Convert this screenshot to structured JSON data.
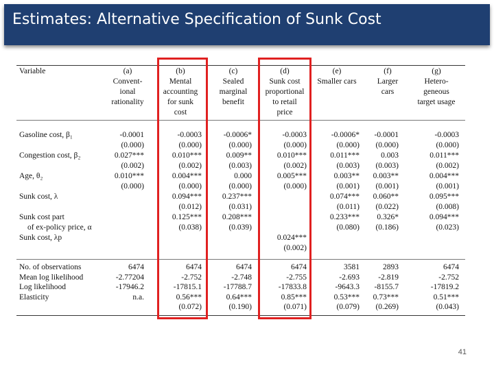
{
  "slide": {
    "title": "Estimates: Alternative Specification of Sunk Cost",
    "page_number": "41",
    "accent_color": "#1f3f71",
    "highlight_color": "#e02020"
  },
  "table": {
    "variable_header": "Variable",
    "columns": [
      {
        "tag": "(a)",
        "name": [
          "Convent-",
          "ional",
          "rationality"
        ]
      },
      {
        "tag": "(b)",
        "name": [
          "Mental",
          "accounting",
          "for sunk",
          "cost"
        ]
      },
      {
        "tag": "(c)",
        "name": [
          "Sealed",
          "marginal",
          "benefit"
        ]
      },
      {
        "tag": "(d)",
        "name": [
          "Sunk cost",
          "proportional",
          "to retail",
          "price"
        ]
      },
      {
        "tag": "(e)",
        "name": [
          "Smaller cars"
        ]
      },
      {
        "tag": "(f)",
        "name": [
          "Larger",
          "cars"
        ]
      },
      {
        "tag": "(g)",
        "name": [
          "Hetero-",
          "geneous",
          "target usage"
        ]
      }
    ],
    "highlighted_columns": [
      "(b)",
      "(d)"
    ],
    "coef_rows": [
      {
        "label": "Gasoline cost, β₁",
        "values": [
          "-0.0001",
          "-0.0003",
          "-0.0006*",
          "-0.0003",
          "-0.0006*",
          "-0.0001",
          "-0.0003"
        ]
      },
      {
        "label": "",
        "values": [
          "(0.000)",
          "(0.000)",
          "(0.000)",
          "(0.000)",
          "(0.000)",
          "(0.000)",
          "(0.000)"
        ]
      },
      {
        "label": "Congestion cost, β₂",
        "values": [
          "0.027***",
          "0.010***",
          "0.009**",
          "0.010***",
          "0.011***",
          "0.003",
          "0.011***"
        ]
      },
      {
        "label": "",
        "values": [
          "(0.002)",
          "(0.002)",
          "(0.003)",
          "(0.002)",
          "(0.003)",
          "(0.003)",
          "(0.002)"
        ]
      },
      {
        "label": "Age, θ₂",
        "values": [
          "0.010***",
          "0.004***",
          "0.000",
          "0.005***",
          "0.003**",
          "0.003**",
          "0.004***"
        ]
      },
      {
        "label": "",
        "values": [
          "(0.000)",
          "(0.000)",
          "(0.000)",
          "(0.000)",
          "(0.001)",
          "(0.001)",
          "(0.001)"
        ]
      },
      {
        "label": "Sunk cost, λ",
        "values": [
          "",
          "0.094***",
          "0.237***",
          "",
          "0.074***",
          "0.060**",
          "0.095***"
        ]
      },
      {
        "label": "",
        "values": [
          "",
          "(0.012)",
          "(0.031)",
          "",
          "(0.011)",
          "(0.022)",
          "(0.008)"
        ]
      },
      {
        "label": "Sunk cost part",
        "values": [
          "",
          "0.125***",
          "0.208***",
          "",
          "0.233***",
          "0.326*",
          "0.094***"
        ]
      },
      {
        "label": "of ex-policy price, α",
        "indent": true,
        "values": [
          "",
          "(0.038)",
          "(0.039)",
          "",
          "(0.080)",
          "(0.186)",
          "(0.023)"
        ]
      },
      {
        "label": "Sunk cost, λp",
        "values": [
          "",
          "",
          "",
          "0.024***",
          "",
          "",
          ""
        ]
      },
      {
        "label": "",
        "values": [
          "",
          "",
          "",
          "(0.002)",
          "",
          "",
          ""
        ]
      }
    ],
    "stat_rows": [
      {
        "label": "No. of observations",
        "values": [
          "6474",
          "6474",
          "6474",
          "6474",
          "3581",
          "2893",
          "6474"
        ]
      },
      {
        "label": "Mean log likelihood",
        "values": [
          "-2.77204",
          "-2.752",
          "-2.748",
          "-2.755",
          "-2.693",
          "-2.819",
          "-2.752"
        ]
      },
      {
        "label": "Log likelihood",
        "values": [
          "-17946.2",
          "-17815.1",
          "-17788.7",
          "-17833.8",
          "-9643.3",
          "-8155.7",
          "-17819.2"
        ]
      },
      {
        "label": "Elasticity",
        "values": [
          "n.a.",
          "0.56***",
          "0.64***",
          "0.85***",
          "0.53***",
          "0.73***",
          "0.51***"
        ]
      },
      {
        "label": "",
        "values": [
          "",
          "(0.072)",
          "(0.190)",
          "(0.071)",
          "(0.079)",
          "(0.269)",
          "(0.043)"
        ]
      }
    ]
  }
}
